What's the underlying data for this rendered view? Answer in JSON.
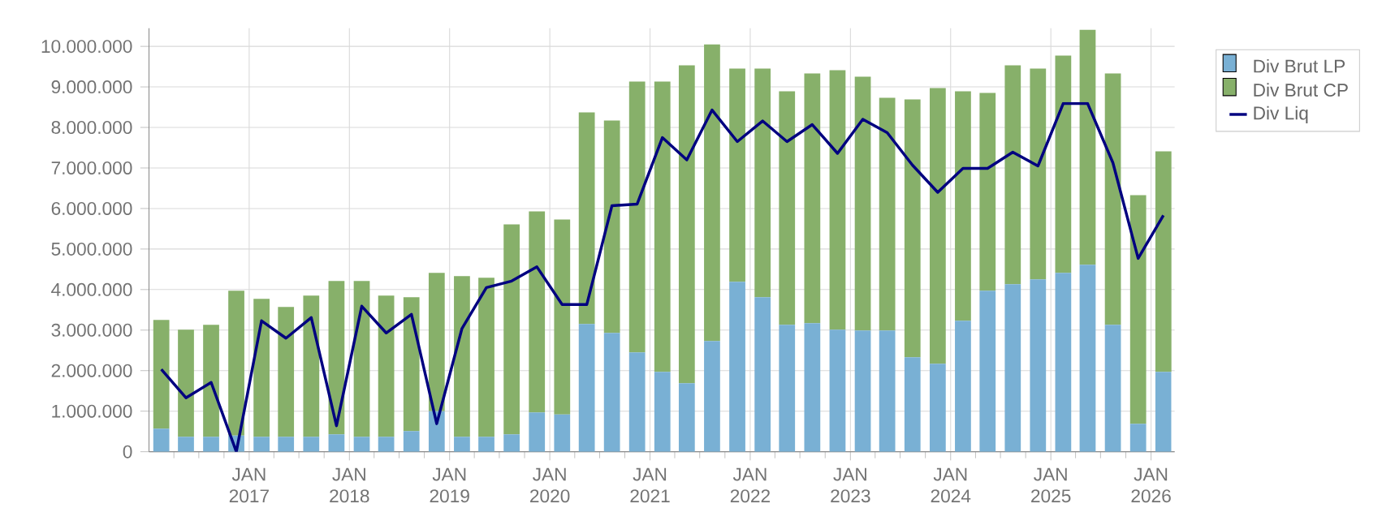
{
  "chart_data": {
    "type": "bar",
    "stacked": true,
    "x": [
      "2016-02-15",
      "2016-05-15",
      "2016-08-15",
      "2016-11-15",
      "2017-02-15",
      "2017-05-15",
      "2017-08-15",
      "2017-11-15",
      "2018-02-15",
      "2018-05-15",
      "2018-08-15",
      "2018-11-15",
      "2019-02-15",
      "2019-05-15",
      "2019-08-15",
      "2019-11-15",
      "2020-02-15",
      "2020-05-15",
      "2020-08-15",
      "2020-11-15",
      "2021-02-15",
      "2021-05-15",
      "2021-08-15",
      "2021-11-15",
      "2022-02-15",
      "2022-05-15",
      "2022-08-15",
      "2022-11-15",
      "2023-02-15",
      "2023-05-15",
      "2023-08-15",
      "2023-11-15",
      "2024-02-15",
      "2024-05-15",
      "2024-08-15",
      "2024-11-15",
      "2025-02-15",
      "2025-05-15",
      "2025-08-15",
      "2025-11-15",
      "2026-02-15"
    ],
    "series": [
      {
        "name": "Div Brut LP",
        "color": "#79b0d4",
        "values": [
          570000,
          370000,
          370000,
          400000,
          370000,
          370000,
          370000,
          430000,
          370000,
          370000,
          510000,
          1000000,
          370000,
          370000,
          430000,
          970000,
          920000,
          3150000,
          2930000,
          2450000,
          1970000,
          1690000,
          2730000,
          4190000,
          3810000,
          3130000,
          3170000,
          3010000,
          2990000,
          2990000,
          2330000,
          2170000,
          3230000,
          3970000,
          4130000,
          4250000,
          4410000,
          4610000,
          3130000,
          690000,
          1970000
        ]
      },
      {
        "name": "Div Brut CP",
        "color": "#87b06a",
        "values": [
          2680000,
          2640000,
          2760000,
          3570000,
          3400000,
          3200000,
          3480000,
          3780000,
          3840000,
          3480000,
          3300000,
          3410000,
          3960000,
          3920000,
          5180000,
          4960000,
          4810000,
          5220000,
          5240000,
          6680000,
          7160000,
          7840000,
          7320000,
          5260000,
          5640000,
          5760000,
          6160000,
          6400000,
          6260000,
          5740000,
          6360000,
          6800000,
          5660000,
          4880000,
          5400000,
          5200000,
          5360000,
          5800000,
          6200000,
          5640000,
          5440000
        ]
      },
      {
        "name": "Div Liq",
        "type": "line",
        "color": "#000080",
        "values": [
          2030000,
          1330000,
          1710000,
          0,
          3230000,
          2800000,
          3310000,
          640000,
          3590000,
          2930000,
          3390000,
          690000,
          3040000,
          4050000,
          4210000,
          4560000,
          3630000,
          3630000,
          6070000,
          6110000,
          7750000,
          7200000,
          8430000,
          7650000,
          8160000,
          7650000,
          8070000,
          7360000,
          8200000,
          7870000,
          7070000,
          6400000,
          6990000,
          6990000,
          7390000,
          7050000,
          8590000,
          8590000,
          7130000,
          4770000,
          5830000
        ]
      }
    ],
    "xlim": [
      "2016-01-01",
      "2026-03-28"
    ],
    "xticks": [
      {
        "value": "2016-04-01",
        "label": null
      },
      {
        "value": "2016-07-01",
        "label": null
      },
      {
        "value": "2016-10-01",
        "label": null
      },
      {
        "value": "2017-01-01",
        "label": "JAN 2017"
      },
      {
        "value": "2017-04-01",
        "label": null
      },
      {
        "value": "2017-07-01",
        "label": null
      },
      {
        "value": "2017-10-01",
        "label": null
      },
      {
        "value": "2018-01-01",
        "label": "JAN 2018"
      },
      {
        "value": "2018-04-01",
        "label": null
      },
      {
        "value": "2018-07-01",
        "label": null
      },
      {
        "value": "2018-10-01",
        "label": null
      },
      {
        "value": "2019-01-01",
        "label": "JAN 2019"
      },
      {
        "value": "2019-04-01",
        "label": null
      },
      {
        "value": "2019-07-01",
        "label": null
      },
      {
        "value": "2019-10-01",
        "label": null
      },
      {
        "value": "2020-01-01",
        "label": "JAN 2020"
      },
      {
        "value": "2020-04-01",
        "label": null
      },
      {
        "value": "2020-07-01",
        "label": null
      },
      {
        "value": "2020-10-01",
        "label": null
      },
      {
        "value": "2021-01-01",
        "label": "JAN 2021"
      },
      {
        "value": "2021-04-01",
        "label": null
      },
      {
        "value": "2021-07-01",
        "label": null
      },
      {
        "value": "2021-10-01",
        "label": null
      },
      {
        "value": "2022-01-01",
        "label": "JAN 2022"
      },
      {
        "value": "2022-04-01",
        "label": null
      },
      {
        "value": "2022-07-01",
        "label": null
      },
      {
        "value": "2022-10-01",
        "label": null
      },
      {
        "value": "2023-01-01",
        "label": "JAN 2023"
      },
      {
        "value": "2023-04-01",
        "label": null
      },
      {
        "value": "2023-07-01",
        "label": null
      },
      {
        "value": "2023-10-01",
        "label": null
      },
      {
        "value": "2024-01-01",
        "label": "JAN 2024"
      },
      {
        "value": "2024-04-01",
        "label": null
      },
      {
        "value": "2024-07-01",
        "label": null
      },
      {
        "value": "2024-10-01",
        "label": null
      },
      {
        "value": "2025-01-01",
        "label": "JAN 2025"
      },
      {
        "value": "2025-04-01",
        "label": null
      },
      {
        "value": "2025-07-01",
        "label": null
      },
      {
        "value": "2025-10-01",
        "label": null
      },
      {
        "value": "2026-01-01",
        "label": "JAN 2026"
      }
    ],
    "ylim": [
      0,
      10450000
    ],
    "yticks": [
      0,
      {
        "value": 1000000,
        "label": "1.000.000"
      },
      {
        "value": 2000000,
        "label": "2.000.000"
      },
      {
        "value": 3000000,
        "label": "3.000.000"
      },
      {
        "value": 4000000,
        "label": "4.000.000"
      },
      {
        "value": 5000000,
        "label": "5.000.000"
      },
      {
        "value": 6000000,
        "label": "6.000.000"
      },
      {
        "value": 7000000,
        "label": "7.000.000"
      },
      {
        "value": 8000000,
        "label": "8.000.000"
      },
      {
        "value": 9000000,
        "label": "9.000.000"
      },
      {
        "value": 10000000,
        "label": "10.000.000"
      }
    ],
    "grid": true,
    "legend": "top right"
  }
}
